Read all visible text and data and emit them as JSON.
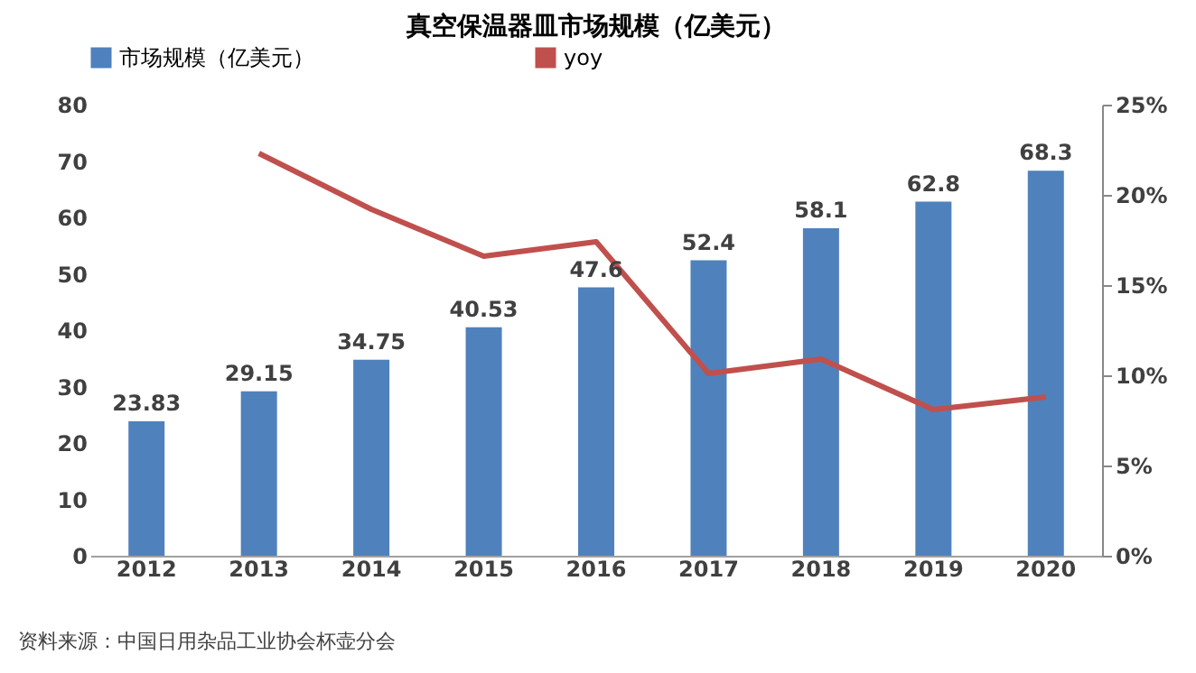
{
  "chart_data": {
    "type": "bar",
    "title": "真空保温器皿市场规模（亿美元）",
    "categories": [
      "2012",
      "2013",
      "2014",
      "2015",
      "2016",
      "2017",
      "2018",
      "2019",
      "2020"
    ],
    "series": [
      {
        "name": "市场规模（亿美元）",
        "color": "#4f81bd",
        "values": [
          23.83,
          29.15,
          34.75,
          40.53,
          47.6,
          52.4,
          58.1,
          62.8,
          68.3
        ],
        "value_labels": [
          "23.83",
          "29.15",
          "34.75",
          "40.53",
          "47.6",
          "52.4",
          "58.1",
          "62.8",
          "68.3"
        ]
      },
      {
        "name": "yoy",
        "type": "line",
        "axis": "y2",
        "color": "#c0504d",
        "values": [
          null,
          22.3,
          19.2,
          16.6,
          17.4,
          10.1,
          10.9,
          8.1,
          8.8
        ]
      }
    ],
    "ylim": [
      0,
      80
    ],
    "yticks": [
      0,
      10,
      20,
      30,
      40,
      50,
      60,
      70,
      80
    ],
    "y2lim": [
      0,
      25
    ],
    "y2ticks": [
      {
        "value": 0,
        "label": "0%"
      },
      {
        "value": 5,
        "label": "5%"
      },
      {
        "value": 10,
        "label": "10%"
      },
      {
        "value": 15,
        "label": "15%"
      },
      {
        "value": 20,
        "label": "20%"
      },
      {
        "value": 25,
        "label": "25%"
      }
    ],
    "grid": false,
    "legend": "top",
    "marker": "none",
    "annotations": [
      "资料来源：中国日用杂品工业协会杯壶分会"
    ]
  }
}
